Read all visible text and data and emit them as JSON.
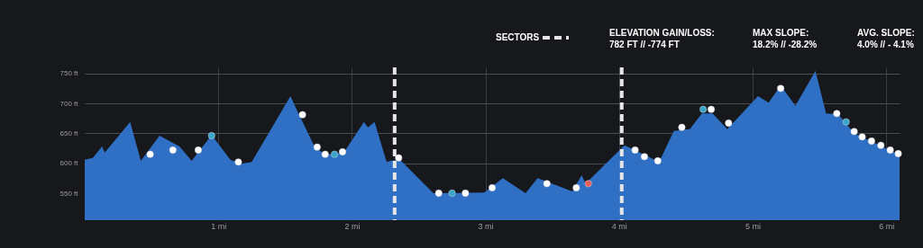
{
  "chart_data": {
    "type": "area",
    "x": [
      0,
      0.06,
      0.13,
      0.15,
      0.34,
      0.42,
      0.56,
      0.71,
      0.8,
      0.95,
      1.09,
      1.17,
      1.25,
      1.54,
      1.6,
      1.72,
      1.8,
      1.94,
      2.09,
      2.12,
      2.17,
      2.26,
      2.29,
      2.36,
      2.61,
      2.99,
      3.13,
      3.3,
      3.39,
      3.65,
      3.72,
      3.75,
      4.04,
      4.1,
      4.3,
      4.41,
      4.53,
      4.62,
      4.7,
      4.81,
      5.04,
      5.12,
      5.21,
      5.32,
      5.47,
      5.55,
      5.64,
      5.76,
      6.1
    ],
    "series": [
      {
        "color": "#2f6fc4",
        "values": [
          606,
          609,
          628,
          618,
          669,
          604,
          646,
          628,
          604,
          647,
          606,
          599,
          602,
          712,
          683,
          628,
          614,
          618,
          669,
          660,
          669,
          602,
          604,
          606,
          550,
          551,
          575,
          550,
          575,
          553,
          580,
          566,
          630,
          624,
          602,
          654,
          657,
          683,
          683,
          657,
          712,
          701,
          730,
          696,
          754,
          683,
          682,
          650,
          614
        ]
      },
      {
        "type": "scatter",
        "marker": "circle",
        "x": [
          0.49,
          0.66,
          0.85,
          0.95,
          1.15,
          1.63,
          1.74,
          1.8,
          1.87,
          1.93,
          2.35,
          2.65,
          2.75,
          2.85,
          3.05,
          3.46,
          3.68,
          3.77,
          4.12,
          4.19,
          4.29,
          4.47,
          4.63,
          4.69,
          4.82,
          5.21,
          5.63,
          5.7,
          5.76,
          5.82,
          5.89,
          5.96,
          6.03,
          6.09
        ],
        "values": [
          615,
          622,
          622,
          646,
          602,
          681,
          627,
          615,
          615,
          619,
          609,
          550,
          550,
          550,
          559,
          566,
          559,
          566,
          622,
          611,
          604,
          660,
          690,
          690,
          667,
          725,
          683,
          669,
          653,
          644,
          637,
          630,
          622,
          616
        ],
        "colors": [
          "#ffffff",
          "#ffffff",
          "#ffffff",
          "#3aa6c9",
          "#ffffff",
          "#ffffff",
          "#ffffff",
          "#ffffff",
          "#3aa6c9",
          "#ffffff",
          "#ffffff",
          "#ffffff",
          "#3aa6c9",
          "#ffffff",
          "#ffffff",
          "#ffffff",
          "#ffffff",
          "#e8605a",
          "#ffffff",
          "#ffffff",
          "#ffffff",
          "#ffffff",
          "#3aa6c9",
          "#ffffff",
          "#ffffff",
          "#ffffff",
          "#ffffff",
          "#3aa6c9",
          "#ffffff",
          "#ffffff",
          "#ffffff",
          "#ffffff",
          "#ffffff",
          "#ffffff"
        ]
      }
    ],
    "xlim": [
      0,
      6.1
    ],
    "xticks": [
      {
        "value": 1,
        "label": "1 mi"
      },
      {
        "value": 2,
        "label": "2 mi"
      },
      {
        "value": 3,
        "label": "3 mi"
      },
      {
        "value": 4,
        "label": "4 mi"
      },
      {
        "value": 5,
        "label": "5 mi"
      },
      {
        "value": 6,
        "label": "6 mi"
      }
    ],
    "ylim": [
      505,
      760
    ],
    "yticks": [
      {
        "value": 550,
        "label": "550 ft"
      },
      {
        "value": 600,
        "label": "600 ft"
      },
      {
        "value": 650,
        "label": "650 ft"
      },
      {
        "value": 700,
        "label": "700 ft"
      },
      {
        "value": 750,
        "label": "750 ft"
      }
    ],
    "grid": true,
    "ref_lines": [
      {
        "axis": "x",
        "value": 2.32,
        "label": "SECTORS",
        "color": "#e6e6e6",
        "line_style": "dashed"
      },
      {
        "axis": "x",
        "value": 4.02,
        "label": null,
        "color": "#e6e6e6",
        "line_style": "dashed"
      }
    ],
    "annotations": [
      "ELEVATION GAIN/LOSS:",
      "782 FT //  -774 FT",
      "MAX SLOPE:",
      "18.2% // -28.2%",
      "AVG. SLOPE:",
      "4.0% // - 4.1%"
    ]
  }
}
